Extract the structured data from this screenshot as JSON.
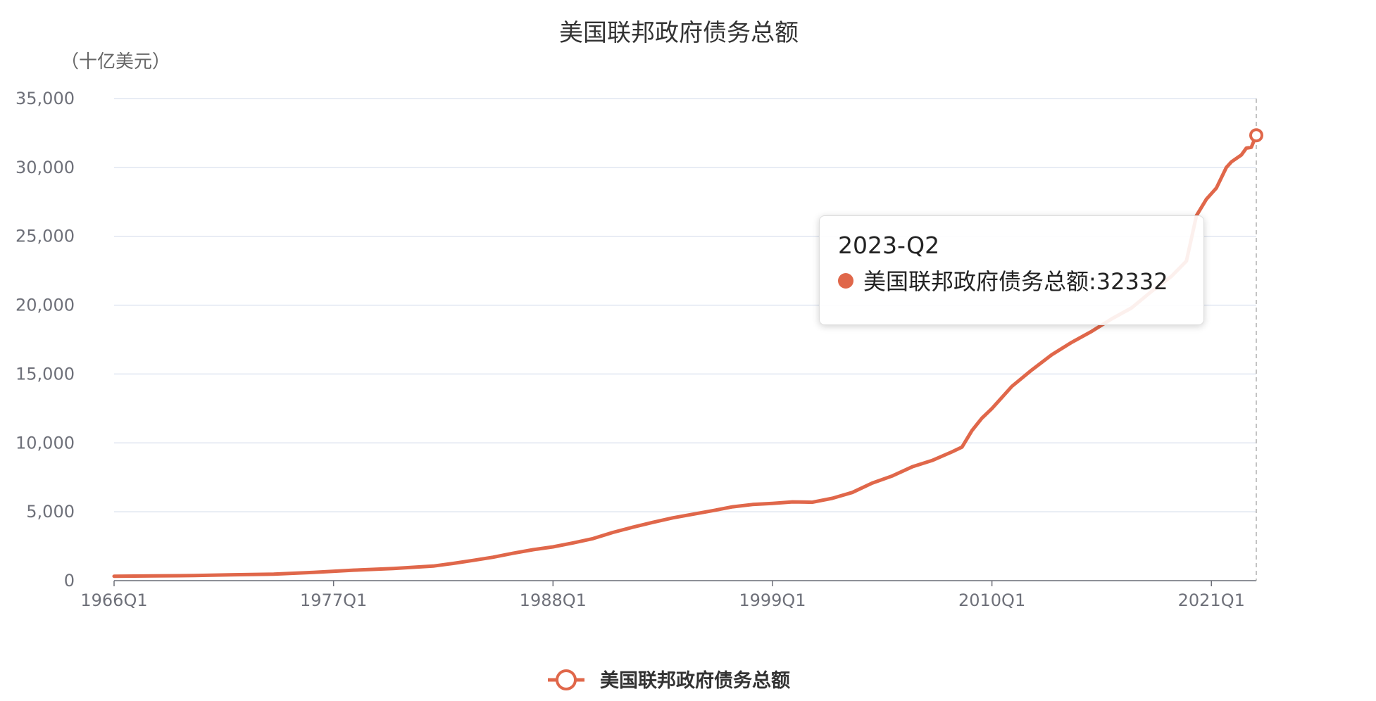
{
  "chart_data": {
    "type": "line",
    "title": "美国联邦政府债务总额",
    "y_unit_label": "（十亿美元）",
    "xlabel": "",
    "ylabel": "",
    "ylim": [
      0,
      35000
    ],
    "y_ticks": [
      "0",
      "5,000",
      "10,000",
      "15,000",
      "20,000",
      "25,000",
      "30,000",
      "35,000"
    ],
    "x_tick_labels": [
      "1966Q1",
      "1977Q1",
      "1988Q1",
      "1999Q1",
      "2010Q1",
      "2021Q1"
    ],
    "x_range": [
      "1966Q1",
      "2023Q2"
    ],
    "grid": true,
    "legend_position": "bottom",
    "color": "#e0674a",
    "series": [
      {
        "name": "美国联邦政府债务总额",
        "points": [
          [
            "1966Q1",
            320
          ],
          [
            "1968Q1",
            345
          ],
          [
            "1970Q1",
            370
          ],
          [
            "1972Q1",
            427
          ],
          [
            "1974Q1",
            470
          ],
          [
            "1976Q1",
            600
          ],
          [
            "1978Q1",
            760
          ],
          [
            "1980Q1",
            880
          ],
          [
            "1982Q1",
            1060
          ],
          [
            "1983Q1",
            1250
          ],
          [
            "1984Q1",
            1470
          ],
          [
            "1985Q1",
            1700
          ],
          [
            "1986Q1",
            1990
          ],
          [
            "1987Q1",
            2250
          ],
          [
            "1988Q1",
            2450
          ],
          [
            "1989Q1",
            2740
          ],
          [
            "1990Q1",
            3050
          ],
          [
            "1991Q1",
            3500
          ],
          [
            "1992Q1",
            3880
          ],
          [
            "1993Q1",
            4230
          ],
          [
            "1994Q1",
            4560
          ],
          [
            "1995Q1",
            4820
          ],
          [
            "1996Q1",
            5080
          ],
          [
            "1997Q1",
            5360
          ],
          [
            "1998Q1",
            5530
          ],
          [
            "1999Q1",
            5610
          ],
          [
            "2000Q1",
            5720
          ],
          [
            "2001Q1",
            5690
          ],
          [
            "2002Q1",
            5980
          ],
          [
            "2003Q1",
            6400
          ],
          [
            "2004Q1",
            7080
          ],
          [
            "2005Q1",
            7600
          ],
          [
            "2006Q1",
            8260
          ],
          [
            "2007Q1",
            8720
          ],
          [
            "2008Q1",
            9350
          ],
          [
            "2008Q3",
            9700
          ],
          [
            "2009Q1",
            10900
          ],
          [
            "2009Q3",
            11800
          ],
          [
            "2010Q1",
            12500
          ],
          [
            "2010Q3",
            13300
          ],
          [
            "2011Q1",
            14100
          ],
          [
            "2012Q1",
            15300
          ],
          [
            "2013Q1",
            16400
          ],
          [
            "2014Q1",
            17300
          ],
          [
            "2015Q1",
            18100
          ],
          [
            "2016Q1",
            19000
          ],
          [
            "2017Q1",
            19800
          ],
          [
            "2018Q1",
            21000
          ],
          [
            "2019Q1",
            22100
          ],
          [
            "2019Q4",
            23200
          ],
          [
            "2020Q2",
            26500
          ],
          [
            "2020Q4",
            27700
          ],
          [
            "2021Q1",
            28100
          ],
          [
            "2021Q2",
            28500
          ],
          [
            "2021Q4",
            30000
          ],
          [
            "2022Q1",
            30400
          ],
          [
            "2022Q3",
            30900
          ],
          [
            "2022Q4",
            31400
          ],
          [
            "2023Q1",
            31460
          ],
          [
            "2023Q2",
            32332
          ]
        ]
      }
    ],
    "tooltip": {
      "header": "2023-Q2",
      "series_name": "美国联邦政府债务总额",
      "value": "32332"
    }
  }
}
